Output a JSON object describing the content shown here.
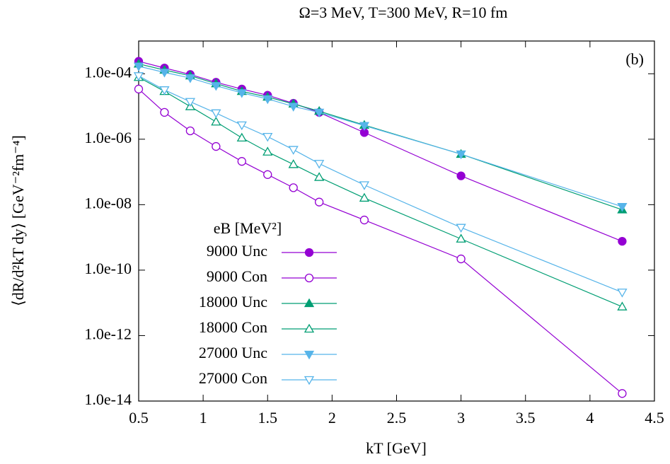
{
  "chart_data": {
    "type": "line",
    "title": "Ω=3 MeV, T=300 MeV, R=10 fm",
    "x_label": "kT [GeV]",
    "y_label": "⟨dR/d²kT dy⟩ [GeV⁻²fm⁻⁴]",
    "annotation": "(b)",
    "legend_title": "eB [MeV²]",
    "legend_position": "left",
    "log_y": true,
    "grid": false,
    "x": [
      0.5,
      0.7,
      0.9,
      1.1,
      1.3,
      1.5,
      1.7,
      1.9,
      2.25,
      3,
      4.25
    ],
    "xlim": [
      0.5,
      4.5
    ],
    "xticks": [
      0.5,
      1,
      1.5,
      2,
      2.5,
      3,
      3.5,
      4,
      4.5
    ],
    "ylim": [
      1e-14,
      0.001
    ],
    "yticks": [
      {
        "value": 1e-14,
        "label": "1.0e-14"
      },
      {
        "value": 1e-12,
        "label": "1.0e-12"
      },
      {
        "value": 1e-10,
        "label": "1.0e-10"
      },
      {
        "value": 1e-08,
        "label": "1.0e-08"
      },
      {
        "value": 1e-06,
        "label": "1.0e-06"
      },
      {
        "value": 0.0001,
        "label": "1.0e-04"
      }
    ],
    "series": [
      {
        "name": "9000 Unc",
        "color": "#9400d3",
        "marker": "circle",
        "filled": true,
        "values": [
          0.00024,
          0.00015,
          9.5e-05,
          5.5e-05,
          3.4e-05,
          2.2e-05,
          1.25e-05,
          6.6e-06,
          1.6e-06,
          7.6e-08,
          7.6e-10
        ]
      },
      {
        "name": "9000 Con",
        "color": "#9400d3",
        "marker": "circle",
        "filled": false,
        "values": [
          3.4e-05,
          6.6e-06,
          1.8e-06,
          6e-07,
          2.1e-07,
          8.3e-08,
          3.3e-08,
          1.2e-08,
          3.4e-09,
          2.2e-10,
          1.7e-14
        ]
      },
      {
        "name": "18000 Unc",
        "color": "#009e73",
        "marker": "triangle-up",
        "filled": true,
        "values": [
          0.0002,
          0.00013,
          8.7e-05,
          5e-05,
          2.9e-05,
          1.95e-05,
          1.2e-05,
          7.2e-06,
          2.7e-06,
          3.5e-07,
          7e-09
        ]
      },
      {
        "name": "18000 Con",
        "color": "#009e73",
        "marker": "triangle-up",
        "filled": false,
        "values": [
          7.8e-05,
          2.9e-05,
          1e-05,
          3.4e-06,
          1.1e-06,
          4.1e-07,
          1.7e-07,
          6.9e-08,
          1.6e-08,
          9e-10,
          7.6e-12
        ]
      },
      {
        "name": "27000 Unc",
        "color": "#56b4e9",
        "marker": "triangle-down",
        "filled": true,
        "values": [
          0.00017,
          0.00011,
          7.4e-05,
          4.3e-05,
          2.6e-05,
          1.7e-05,
          1e-05,
          6.6e-06,
          2.6e-06,
          3.5e-07,
          8.7e-09
        ]
      },
      {
        "name": "27000 Con",
        "color": "#56b4e9",
        "marker": "triangle-down",
        "filled": false,
        "values": [
          8.6e-05,
          3.2e-05,
          1.4e-05,
          6.3e-06,
          2.7e-06,
          1.2e-06,
          4.8e-07,
          1.8e-07,
          4e-08,
          2e-09,
          2.1e-11
        ]
      }
    ]
  }
}
